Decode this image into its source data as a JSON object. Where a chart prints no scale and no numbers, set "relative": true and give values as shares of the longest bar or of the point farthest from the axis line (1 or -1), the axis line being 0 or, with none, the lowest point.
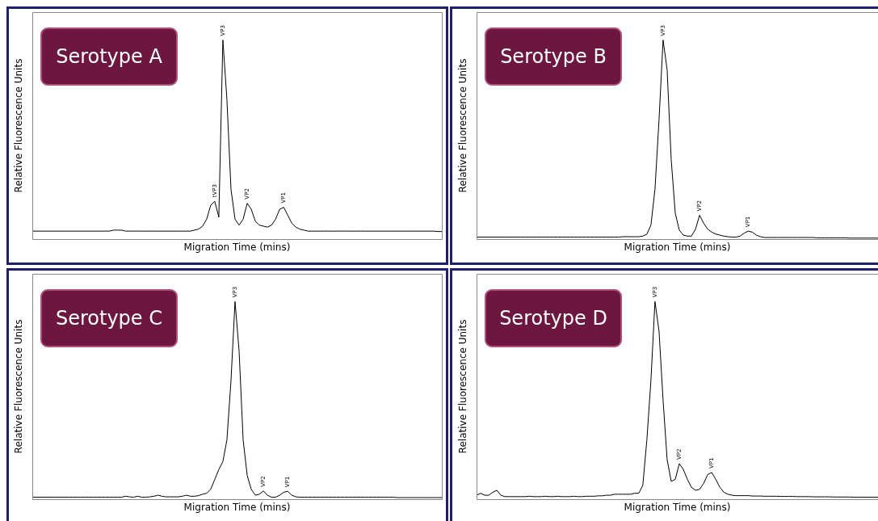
{
  "chart_data": [
    {
      "type": "line",
      "title": "Serotype A",
      "xlabel": "Migration Time (mins)",
      "ylabel": "Relative Fluorescence Units",
      "relative": true,
      "categories": [
        null,
        null,
        null,
        null,
        null,
        null,
        null,
        null,
        null,
        null,
        null,
        null,
        null,
        null,
        null,
        null,
        null,
        null,
        null,
        null,
        null,
        null,
        null,
        null,
        null,
        null,
        null,
        null,
        null,
        null,
        null,
        null,
        null,
        null,
        null,
        null,
        null,
        null,
        null,
        null,
        null,
        null,
        null,
        null,
        null,
        null,
        null,
        null,
        null,
        null,
        null,
        null,
        null,
        null,
        null,
        null,
        null,
        null,
        null,
        null,
        null,
        null,
        null,
        null,
        null,
        null,
        null,
        null,
        null,
        null,
        null,
        null,
        null,
        null,
        null,
        null,
        null,
        null,
        null,
        null,
        null,
        null,
        null,
        null,
        null,
        null,
        null,
        null,
        null,
        null,
        null,
        null,
        null,
        null,
        null,
        null,
        null,
        null,
        null,
        null,
        null,
        null
      ],
      "series": [
        {
          "color": "#000000",
          "values": [
            0.04,
            0.04,
            0.04,
            0.04,
            0.04,
            0.04,
            0.04,
            0.04,
            0.04,
            0.04,
            0.04,
            0.04,
            0.04,
            0.04,
            0.04,
            0.04,
            0.04,
            0.04,
            0.04,
            0.04,
            0.045,
            0.045,
            0.045,
            0.04,
            0.04,
            0.04,
            0.04,
            0.04,
            0.04,
            0.04,
            0.04,
            0.04,
            0.04,
            0.04,
            0.04,
            0.04,
            0.04,
            0.04,
            0.04,
            0.04,
            0.045,
            0.05,
            0.065,
            0.1,
            0.17,
            0.19,
            0.11,
            1,
            0.7,
            0.25,
            0.1,
            0.07,
            0.1,
            0.18,
            0.15,
            0.09,
            0.07,
            0.065,
            0.06,
            0.07,
            0.1,
            0.15,
            0.16,
            0.12,
            0.08,
            0.06,
            0.05,
            0.045,
            0.04,
            0.04,
            0.04,
            0.04,
            0.04,
            0.04,
            0.04,
            0.04,
            0.04,
            0.04,
            0.04,
            0.04,
            0.04,
            0.04,
            0.04,
            0.04,
            0.04,
            0.04,
            0.04,
            0.04,
            0.04,
            0.04,
            0.04,
            0.04,
            0.04,
            0.04,
            0.04,
            0.04,
            0.04,
            0.04,
            0.04,
            0.04,
            0.038,
            0.038
          ]
        }
      ],
      "annotations": [
        {
          "text": "tVP3",
          "y": 0.19
        },
        {
          "text": "VP3",
          "y": 1
        },
        {
          "text": "VP2",
          "y": 0.18
        },
        {
          "text": "VP1",
          "y": 0.16
        }
      ]
    },
    {
      "type": "line",
      "title": "Serotype B",
      "xlabel": "Migration Time (mins)",
      "ylabel": "Relative Fluorescence Units",
      "relative": true,
      "categories": [
        null,
        null,
        null,
        null,
        null,
        null,
        null,
        null,
        null,
        null,
        null,
        null,
        null,
        null,
        null,
        null,
        null,
        null,
        null,
        null,
        null,
        null,
        null,
        null,
        null,
        null,
        null,
        null,
        null,
        null,
        null,
        null,
        null,
        null,
        null,
        null,
        null,
        null,
        null,
        null,
        null,
        null,
        null,
        null,
        null,
        null,
        null,
        null,
        null,
        null,
        null,
        null,
        null,
        null,
        null,
        null,
        null,
        null,
        null,
        null,
        null,
        null,
        null,
        null,
        null,
        null,
        null,
        null,
        null,
        null,
        null,
        null,
        null,
        null,
        null,
        null,
        null,
        null,
        null,
        null,
        null,
        null,
        null,
        null,
        null,
        null,
        null,
        null,
        null,
        null,
        null,
        null,
        null,
        null,
        null,
        null,
        null,
        null,
        null,
        null
      ],
      "series": [
        {
          "color": "#000000",
          "values": [
            0.01,
            0.01,
            0.01,
            0.01,
            0.01,
            0.01,
            0.01,
            0.01,
            0.01,
            0.01,
            0.01,
            0.01,
            0.01,
            0.01,
            0.01,
            0.01,
            0.01,
            0.01,
            0.01,
            0.01,
            0.01,
            0.01,
            0.01,
            0.01,
            0.01,
            0.01,
            0.01,
            0.01,
            0.01,
            0.01,
            0.01,
            0.01,
            0.01,
            0.01,
            0.01,
            0.01,
            0.012,
            0.012,
            0.012,
            0.012,
            0.012,
            0.015,
            0.025,
            0.07,
            0.25,
            0.6,
            1,
            0.85,
            0.4,
            0.13,
            0.045,
            0.02,
            0.015,
            0.015,
            0.05,
            0.12,
            0.08,
            0.05,
            0.035,
            0.025,
            0.02,
            0.015,
            0.012,
            0.01,
            0.01,
            0.015,
            0.03,
            0.04,
            0.035,
            0.02,
            0.012,
            0.008,
            0.008,
            0.008,
            0.008,
            0.008,
            0.008,
            0.008,
            0.008,
            0.008,
            0.008,
            0.008,
            0.008,
            0.008,
            0.006,
            0.006,
            0.006,
            0.006,
            0.006,
            0.006,
            0.006,
            0.006,
            0.005,
            0.005,
            0.005,
            0.005,
            0.005,
            0.005,
            0.005,
            0.005
          ]
        }
      ],
      "annotations": [
        {
          "text": "VP3",
          "y": 1
        },
        {
          "text": "VP2",
          "y": 0.12
        },
        {
          "text": "VP1",
          "y": 0.04
        }
      ]
    },
    {
      "type": "line",
      "title": "Serotype C",
      "xlabel": "Migration Time (mins)",
      "ylabel": "Relative Fluorescence Units",
      "relative": true,
      "categories": [
        null,
        null,
        null,
        null,
        null,
        null,
        null,
        null,
        null,
        null,
        null,
        null,
        null,
        null,
        null,
        null,
        null,
        null,
        null,
        null,
        null,
        null,
        null,
        null,
        null,
        null,
        null,
        null,
        null,
        null,
        null,
        null,
        null,
        null,
        null,
        null,
        null,
        null,
        null,
        null,
        null,
        null,
        null,
        null,
        null,
        null,
        null,
        null,
        null,
        null,
        null,
        null,
        null,
        null,
        null,
        null,
        null,
        null,
        null,
        null,
        null,
        null,
        null,
        null,
        null,
        null,
        null,
        null,
        null,
        null,
        null,
        null,
        null,
        null,
        null,
        null,
        null,
        null,
        null,
        null,
        null,
        null,
        null,
        null,
        null,
        null,
        null,
        null,
        null,
        null,
        null,
        null,
        null,
        null,
        null,
        null,
        null,
        null,
        null,
        null,
        null,
        null
      ],
      "series": [
        {
          "color": "#000000",
          "values": [
            0.01,
            0.01,
            0.01,
            0.01,
            0.01,
            0.01,
            0.01,
            0.01,
            0.01,
            0.01,
            0.01,
            0.01,
            0.01,
            0.01,
            0.01,
            0.01,
            0.01,
            0.01,
            0.01,
            0.01,
            0.01,
            0.01,
            0.01,
            0.015,
            0.012,
            0.01,
            0.015,
            0.01,
            0.01,
            0.012,
            0.015,
            0.02,
            0.015,
            0.012,
            0.012,
            0.012,
            0.012,
            0.015,
            0.02,
            0.015,
            0.015,
            0.018,
            0.025,
            0.03,
            0.05,
            0.1,
            0.15,
            0.19,
            0.3,
            0.6,
            1,
            0.75,
            0.3,
            0.12,
            0.05,
            0.02,
            0.025,
            0.042,
            0.02,
            0.01,
            0.01,
            0.02,
            0.035,
            0.04,
            0.02,
            0.012,
            0.01,
            0.01,
            0.01,
            0.01,
            0.01,
            0.01,
            0.01,
            0.01,
            0.01,
            0.01,
            0.01,
            0.01,
            0.01,
            0.01,
            0.01,
            0.01,
            0.01,
            0.01,
            0.01,
            0.01,
            0.01,
            0.01,
            0.01,
            0.01,
            0.008,
            0.008,
            0.008,
            0.008,
            0.008,
            0.008,
            0.008,
            0.008,
            0.008,
            0.008,
            0.008,
            0.008
          ]
        }
      ],
      "annotations": [
        {
          "text": "VP3",
          "y": 1
        },
        {
          "text": "VP2",
          "y": 0.042
        },
        {
          "text": "VP1",
          "y": 0.04
        }
      ]
    },
    {
      "type": "line",
      "title": "Serotype D",
      "xlabel": "Migration Time (mins)",
      "ylabel": "Relative Fluorescence Units",
      "relative": true,
      "categories": [
        null,
        null,
        null,
        null,
        null,
        null,
        null,
        null,
        null,
        null,
        null,
        null,
        null,
        null,
        null,
        null,
        null,
        null,
        null,
        null,
        null,
        null,
        null,
        null,
        null,
        null,
        null,
        null,
        null,
        null,
        null,
        null,
        null,
        null,
        null,
        null,
        null,
        null,
        null,
        null,
        null,
        null,
        null,
        null,
        null,
        null,
        null,
        null,
        null,
        null,
        null,
        null,
        null,
        null,
        null,
        null,
        null,
        null,
        null,
        null,
        null,
        null,
        null,
        null,
        null,
        null,
        null,
        null,
        null,
        null,
        null,
        null,
        null,
        null,
        null,
        null,
        null,
        null,
        null,
        null,
        null,
        null,
        null,
        null,
        null,
        null,
        null,
        null,
        null,
        null,
        null,
        null,
        null,
        null,
        null,
        null,
        null,
        null,
        null,
        null
      ],
      "series": [
        {
          "color": "#000000",
          "values": [
            0.02,
            0.03,
            0.02,
            0.02,
            0.035,
            0.045,
            0.02,
            0.013,
            0.013,
            0.013,
            0.013,
            0.013,
            0.013,
            0.015,
            0.013,
            0.013,
            0.013,
            0.015,
            0.013,
            0.013,
            0.015,
            0.013,
            0.013,
            0.013,
            0.015,
            0.013,
            0.013,
            0.015,
            0.015,
            0.015,
            0.017,
            0.017,
            0.02,
            0.02,
            0.025,
            0.025,
            0.025,
            0.025,
            0.025,
            0.03,
            0.03,
            0.07,
            0.3,
            0.6,
            1,
            0.85,
            0.5,
            0.2,
            0.09,
            0.1,
            0.18,
            0.15,
            0.1,
            0.06,
            0.045,
            0.05,
            0.08,
            0.125,
            0.135,
            0.1,
            0.06,
            0.035,
            0.025,
            0.02,
            0.018,
            0.018,
            0.018,
            0.018,
            0.016,
            0.016,
            0.016,
            0.015,
            0.015,
            0.015,
            0.015,
            0.014,
            0.014,
            0.014,
            0.014,
            0.013,
            0.013,
            0.013,
            0.013,
            0.012,
            0.012,
            0.012,
            0.012,
            0.012,
            0.011,
            0.011,
            0.011,
            0.011,
            0.011,
            0.01,
            0.01,
            0.01,
            0.01,
            0.01,
            0.01,
            0.01
          ]
        }
      ],
      "annotations": [
        {
          "text": "VP3",
          "y": 1
        },
        {
          "text": "VP2",
          "y": 0.18
        },
        {
          "text": "VP1",
          "y": 0.135
        }
      ]
    }
  ]
}
